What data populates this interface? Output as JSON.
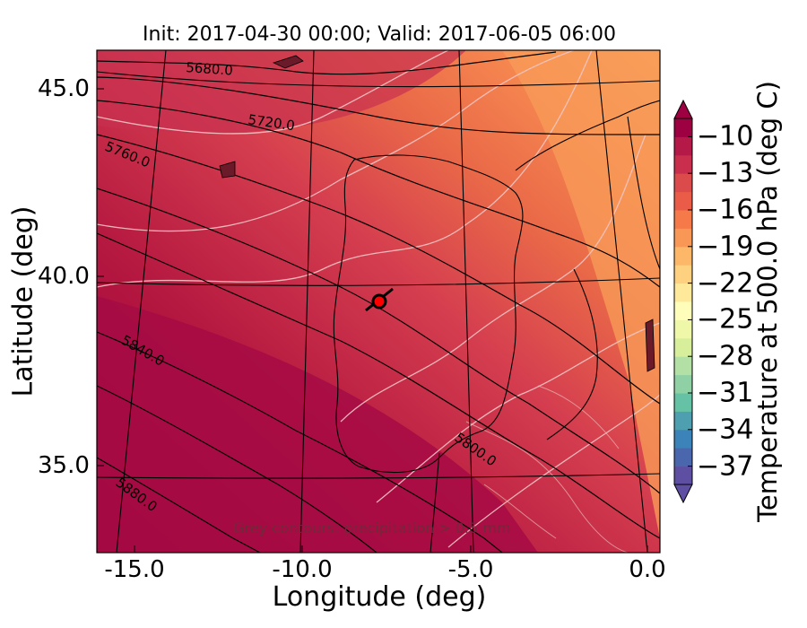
{
  "title": "Init: 2017-04-30 00:00; Valid: 2017-06-05 06:00",
  "xaxis": {
    "label": "Longitude (deg)",
    "ticks": [
      "-15.0",
      "-10.0",
      "-5.0",
      "0.0"
    ]
  },
  "yaxis": {
    "label": "Latitude (deg)",
    "ticks": [
      "45.0",
      "40.0",
      "35.0"
    ]
  },
  "colorbar": {
    "label": "Temperature at 500.0 hPa (deg C)",
    "ticks": [
      "−10",
      "−13",
      "−16",
      "−19",
      "−22",
      "−25",
      "−28",
      "−31",
      "−34",
      "−37"
    ],
    "range": [
      -38.5,
      -8.5
    ]
  },
  "contour_labels": [
    "5680.0",
    "5720.0",
    "5760.0",
    "5840.0",
    "5800.0",
    "5880.0"
  ],
  "annotation": "Grey contours: precipitation > 0.5 mm",
  "colors": {
    "warm_dark": "#9e0142",
    "warm_mid": "#d53e4f",
    "warm_light": "#fdae61",
    "cold": "#5e4fa2"
  }
}
